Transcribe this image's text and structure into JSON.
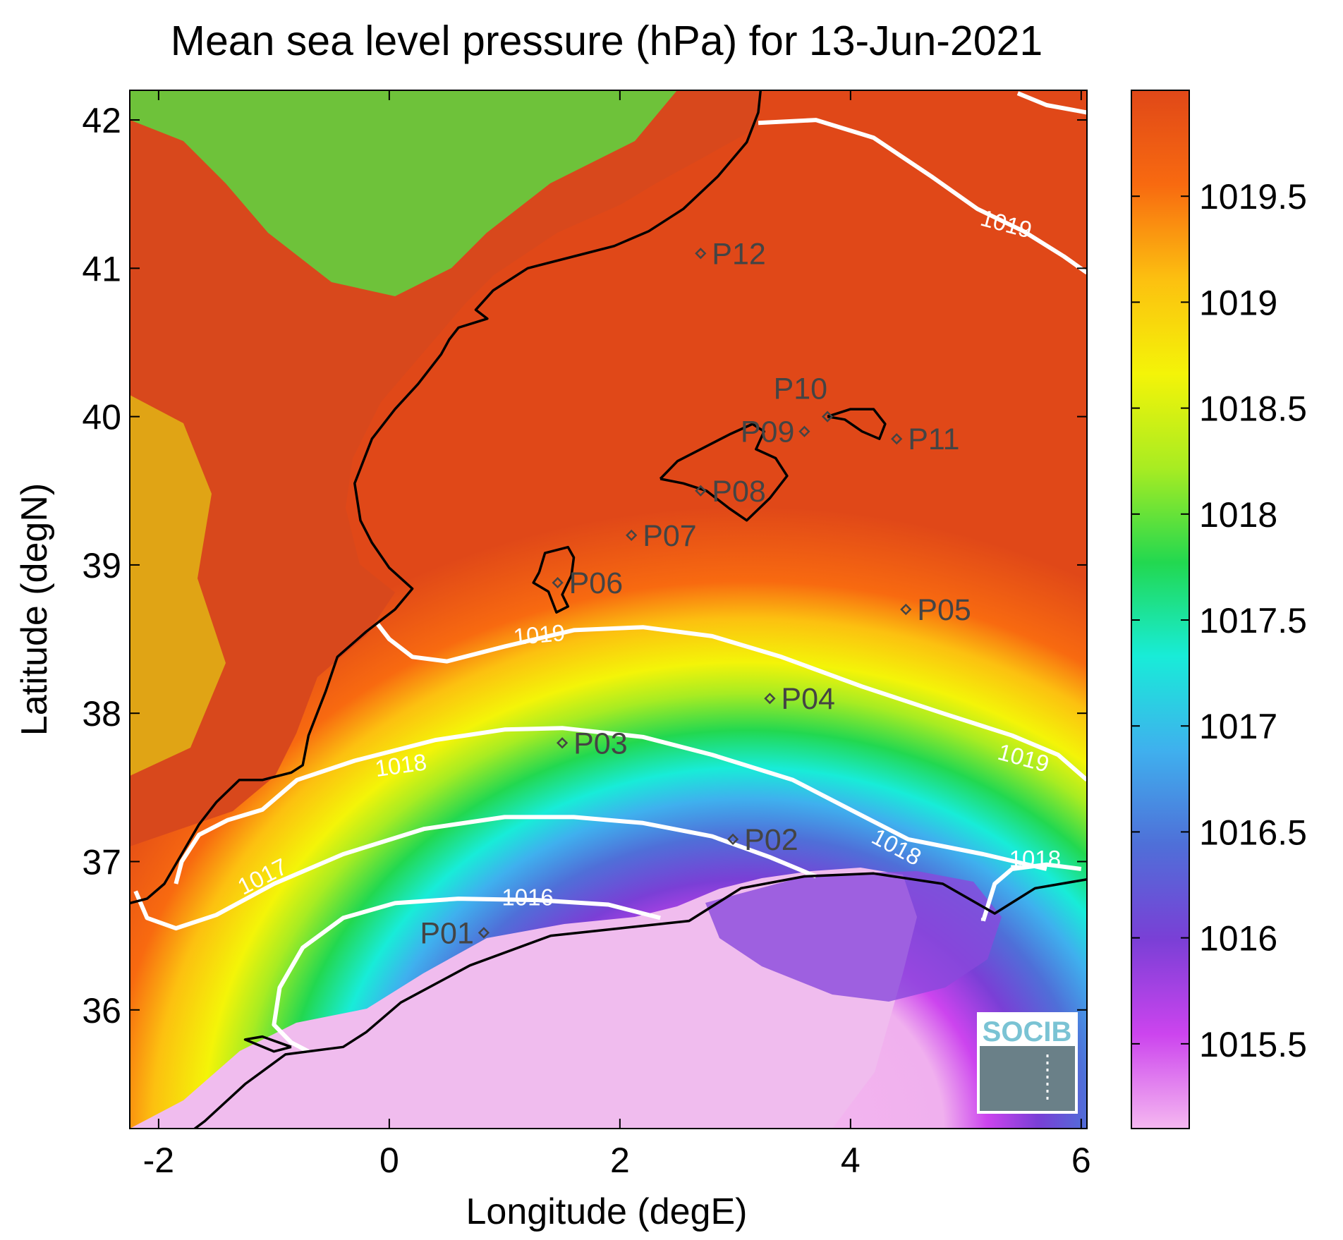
{
  "title": "Mean sea level pressure (hPa) for 13-Jun-2021",
  "x_axis": {
    "label": "Longitude (degE)",
    "ticks": [
      {
        "v": -2,
        "t": "-2"
      },
      {
        "v": 0,
        "t": "0"
      },
      {
        "v": 2,
        "t": "2"
      },
      {
        "v": 4,
        "t": "4"
      },
      {
        "v": 6,
        "t": "6"
      }
    ],
    "range": [
      -2.25,
      6.05
    ]
  },
  "y_axis": {
    "label": "Latitude (degN)",
    "ticks": [
      {
        "v": 36,
        "t": "36"
      },
      {
        "v": 37,
        "t": "37"
      },
      {
        "v": 38,
        "t": "38"
      },
      {
        "v": 39,
        "t": "39"
      },
      {
        "v": 40,
        "t": "40"
      },
      {
        "v": 41,
        "t": "41"
      },
      {
        "v": 42,
        "t": "42"
      }
    ],
    "range": [
      35.2,
      42.2
    ]
  },
  "colorbar": {
    "range": [
      1015.1,
      1020.0
    ],
    "ticks": [
      {
        "v": 1015.5,
        "t": "1015.5"
      },
      {
        "v": 1016,
        "t": "1016"
      },
      {
        "v": 1016.5,
        "t": "1016.5"
      },
      {
        "v": 1017,
        "t": "1017"
      },
      {
        "v": 1017.5,
        "t": "1017.5"
      },
      {
        "v": 1018,
        "t": "1018"
      },
      {
        "v": 1018.5,
        "t": "1018.5"
      },
      {
        "v": 1019,
        "t": "1019"
      },
      {
        "v": 1019.5,
        "t": "1019.5"
      }
    ],
    "colors": [
      "#f5b8f0",
      "#cc44ee",
      "#7a3fd6",
      "#4f6fd8",
      "#3fb0ee",
      "#18ecd8",
      "#22d850",
      "#a8ec22",
      "#f4f408",
      "#fcc010",
      "#f86a10",
      "#e04818"
    ]
  },
  "stations": [
    {
      "id": "P01",
      "lon": 0.82,
      "lat": 36.52,
      "side": "left"
    },
    {
      "id": "P02",
      "lon": 2.98,
      "lat": 37.15,
      "side": "right"
    },
    {
      "id": "P03",
      "lon": 1.5,
      "lat": 37.8,
      "side": "right"
    },
    {
      "id": "P04",
      "lon": 3.3,
      "lat": 38.1,
      "side": "right"
    },
    {
      "id": "P05",
      "lon": 4.48,
      "lat": 38.7,
      "side": "right"
    },
    {
      "id": "P06",
      "lon": 1.46,
      "lat": 38.88,
      "side": "right"
    },
    {
      "id": "P07",
      "lon": 2.1,
      "lat": 39.2,
      "side": "right"
    },
    {
      "id": "P08",
      "lon": 2.7,
      "lat": 39.5,
      "side": "right"
    },
    {
      "id": "P09",
      "lon": 3.6,
      "lat": 39.9,
      "side": "left"
    },
    {
      "id": "P10",
      "lon": 3.8,
      "lat": 40.0,
      "side": "above"
    },
    {
      "id": "P11",
      "lon": 4.4,
      "lat": 39.85,
      "side": "right"
    },
    {
      "id": "P12",
      "lon": 2.7,
      "lat": 41.1,
      "side": "right"
    }
  ],
  "contours": [
    {
      "level": 1016,
      "text": "1016",
      "label_lon": 1.2,
      "label_lat": 36.76,
      "label_angle": 0,
      "path": [
        [
          2.35,
          36.62
        ],
        [
          1.9,
          36.71
        ],
        [
          1.3,
          36.74
        ],
        [
          0.6,
          36.75
        ],
        [
          0.05,
          36.72
        ],
        [
          -0.4,
          36.62
        ],
        [
          -0.75,
          36.42
        ],
        [
          -0.95,
          36.15
        ],
        [
          -1.0,
          35.9
        ],
        [
          -0.85,
          35.78
        ],
        [
          -0.7,
          35.72
        ]
      ]
    },
    {
      "level": 1017,
      "text": "1017",
      "label_lon": -1.1,
      "label_lat": 36.9,
      "label_angle": -27,
      "path": [
        [
          3.7,
          36.9
        ],
        [
          3.3,
          37.03
        ],
        [
          2.8,
          37.17
        ],
        [
          2.2,
          37.26
        ],
        [
          1.6,
          37.3
        ],
        [
          1.0,
          37.3
        ],
        [
          0.3,
          37.22
        ],
        [
          -0.4,
          37.05
        ],
        [
          -1.0,
          36.85
        ],
        [
          -1.5,
          36.64
        ],
        [
          -1.85,
          36.55
        ],
        [
          -2.1,
          36.62
        ],
        [
          -2.2,
          36.8
        ]
      ]
    },
    {
      "level": 1018,
      "text": "1018",
      "label_lon": 0.1,
      "label_lat": 37.65,
      "label_angle": -8,
      "path": [
        [
          5.7,
          36.95
        ],
        [
          5.15,
          37.05
        ],
        [
          4.5,
          37.15
        ],
        [
          4.0,
          37.35
        ],
        [
          3.5,
          37.55
        ],
        [
          2.8,
          37.72
        ],
        [
          2.2,
          37.84
        ],
        [
          1.5,
          37.9
        ],
        [
          1.0,
          37.89
        ],
        [
          0.4,
          37.82
        ],
        [
          -0.3,
          37.68
        ],
        [
          -0.8,
          37.55
        ],
        [
          -1.1,
          37.35
        ],
        [
          -1.4,
          37.28
        ],
        [
          -1.65,
          37.18
        ],
        [
          -1.8,
          37.0
        ],
        [
          -1.85,
          36.85
        ]
      ]
    },
    {
      "level": 1018,
      "text": "1018",
      "label_lon": 4.4,
      "label_lat": 37.1,
      "label_angle": 28,
      "path": [
        [
          5.15,
          36.6
        ],
        [
          5.25,
          36.85
        ],
        [
          5.4,
          36.95
        ],
        [
          5.7,
          36.98
        ],
        [
          6.0,
          36.95
        ]
      ]
    },
    {
      "level": 1018,
      "text": "1018",
      "label_lon": 5.6,
      "label_lat": 37.02,
      "label_angle": 0,
      "path": [
        [
          5.15,
          36.6
        ],
        [
          5.15,
          36.62
        ]
      ]
    },
    {
      "level": 1019,
      "text": "1019",
      "label_lon": 1.3,
      "label_lat": 38.53,
      "label_angle": -5,
      "path": [
        [
          6.05,
          37.55
        ],
        [
          5.8,
          37.72
        ],
        [
          5.4,
          37.85
        ],
        [
          4.8,
          38.0
        ],
        [
          4.1,
          38.18
        ],
        [
          3.4,
          38.38
        ],
        [
          2.8,
          38.52
        ],
        [
          2.2,
          38.58
        ],
        [
          1.6,
          38.56
        ],
        [
          1.0,
          38.45
        ],
        [
          0.5,
          38.35
        ],
        [
          0.2,
          38.38
        ],
        [
          0.0,
          38.5
        ],
        [
          -0.1,
          38.6
        ]
      ]
    },
    {
      "level": 1019,
      "text": "1019",
      "label_lon": 5.5,
      "label_lat": 37.7,
      "label_angle": 15,
      "path": [
        [
          5.5,
          37.7
        ],
        [
          5.5,
          37.7
        ]
      ]
    },
    {
      "level": 1019,
      "text": "1019",
      "label_lon": 5.35,
      "label_lat": 41.3,
      "label_angle": 15,
      "path": [
        [
          3.2,
          41.98
        ],
        [
          3.7,
          42.0
        ],
        [
          4.2,
          41.88
        ],
        [
          4.7,
          41.62
        ],
        [
          5.1,
          41.4
        ],
        [
          5.5,
          41.25
        ],
        [
          5.85,
          41.08
        ],
        [
          6.05,
          40.97
        ]
      ]
    },
    {
      "level": 1019,
      "text": "",
      "label_lon": 5.8,
      "label_lat": 42.15,
      "label_angle": 0,
      "path": [
        [
          5.45,
          42.18
        ],
        [
          5.7,
          42.1
        ],
        [
          6.05,
          42.05
        ]
      ]
    }
  ],
  "coastlines": [
    [
      [
        3.22,
        42.2
      ],
      [
        3.2,
        42.05
      ],
      [
        3.1,
        41.85
      ],
      [
        2.85,
        41.62
      ],
      [
        2.55,
        41.4
      ],
      [
        2.25,
        41.25
      ],
      [
        1.95,
        41.15
      ],
      [
        1.6,
        41.08
      ],
      [
        1.2,
        41.0
      ],
      [
        0.9,
        40.85
      ],
      [
        0.75,
        40.72
      ],
      [
        0.85,
        40.66
      ],
      [
        0.6,
        40.6
      ],
      [
        0.52,
        40.52
      ],
      [
        0.45,
        40.42
      ],
      [
        0.25,
        40.22
      ],
      [
        0.05,
        40.05
      ],
      [
        -0.15,
        39.85
      ],
      [
        -0.3,
        39.55
      ],
      [
        -0.25,
        39.3
      ],
      [
        -0.15,
        39.15
      ],
      [
        0.0,
        38.98
      ],
      [
        0.2,
        38.84
      ],
      [
        0.05,
        38.7
      ],
      [
        -0.2,
        38.55
      ],
      [
        -0.45,
        38.38
      ],
      [
        -0.55,
        38.15
      ],
      [
        -0.7,
        37.85
      ],
      [
        -0.75,
        37.65
      ],
      [
        -0.85,
        37.6
      ],
      [
        -1.1,
        37.55
      ],
      [
        -1.3,
        37.55
      ],
      [
        -1.5,
        37.4
      ],
      [
        -1.65,
        37.25
      ],
      [
        -1.8,
        37.05
      ],
      [
        -1.95,
        36.85
      ],
      [
        -2.1,
        36.75
      ],
      [
        -2.25,
        36.72
      ]
    ],
    [
      [
        6.05,
        36.88
      ],
      [
        5.6,
        36.82
      ],
      [
        5.25,
        36.65
      ],
      [
        4.8,
        36.85
      ],
      [
        4.2,
        36.92
      ],
      [
        3.6,
        36.9
      ],
      [
        3.05,
        36.82
      ],
      [
        2.6,
        36.6
      ],
      [
        2.0,
        36.55
      ],
      [
        1.4,
        36.5
      ],
      [
        0.7,
        36.3
      ],
      [
        0.1,
        36.05
      ],
      [
        -0.2,
        35.85
      ],
      [
        -0.4,
        35.75
      ],
      [
        -0.9,
        35.7
      ],
      [
        -1.25,
        35.5
      ],
      [
        -1.6,
        35.25
      ],
      [
        -1.72,
        35.18
      ]
    ],
    [
      [
        1.3,
        38.95
      ],
      [
        1.35,
        39.08
      ],
      [
        1.55,
        39.12
      ],
      [
        1.6,
        39.05
      ],
      [
        1.58,
        38.93
      ],
      [
        1.5,
        38.8
      ],
      [
        1.55,
        38.72
      ],
      [
        1.45,
        38.68
      ],
      [
        1.38,
        38.82
      ],
      [
        1.25,
        38.88
      ],
      [
        1.3,
        38.95
      ]
    ],
    [
      [
        2.35,
        39.58
      ],
      [
        2.5,
        39.7
      ],
      [
        2.7,
        39.78
      ],
      [
        2.95,
        39.88
      ],
      [
        3.15,
        39.95
      ],
      [
        3.25,
        39.9
      ],
      [
        3.18,
        39.78
      ],
      [
        3.35,
        39.72
      ],
      [
        3.45,
        39.6
      ],
      [
        3.3,
        39.45
      ],
      [
        3.1,
        39.3
      ],
      [
        2.95,
        39.38
      ],
      [
        2.75,
        39.5
      ],
      [
        2.55,
        39.55
      ],
      [
        2.35,
        39.58
      ]
    ],
    [
      [
        3.8,
        40.0
      ],
      [
        4.0,
        40.05
      ],
      [
        4.2,
        40.05
      ],
      [
        4.3,
        39.95
      ],
      [
        4.25,
        39.85
      ],
      [
        4.1,
        39.9
      ],
      [
        3.95,
        39.98
      ],
      [
        3.8,
        40.0
      ]
    ],
    [
      [
        -0.85,
        35.75
      ],
      [
        -1.0,
        35.72
      ],
      [
        -1.25,
        35.8
      ],
      [
        -1.1,
        35.82
      ],
      [
        -0.85,
        35.75
      ]
    ]
  ]
}
